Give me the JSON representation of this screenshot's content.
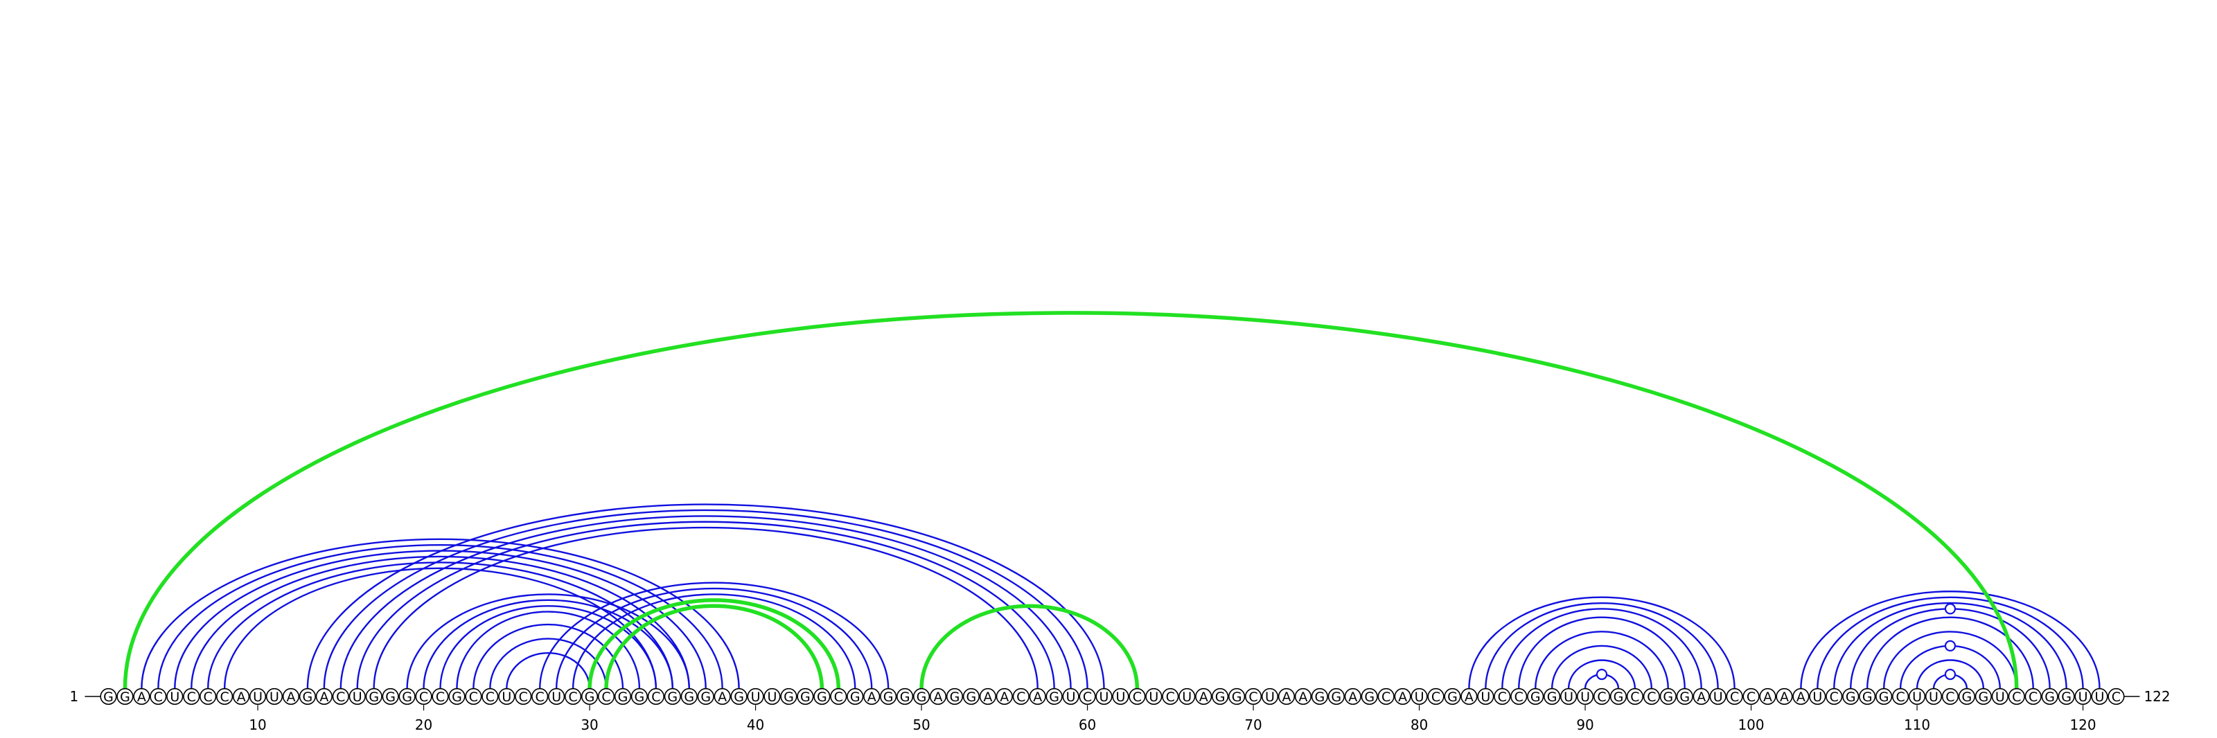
{
  "diagram": {
    "type": "rna-arc-diagram",
    "sequence": "GGACUCCCAUUAGACUGGGCCGCCUCCUCGCGGCGGGAGUUGGGCGAGGGAGGAACAGUCUUCUCUAGGCUAAGGAGCAUCGAUCCGGUUCGCCGGAUCCAAAUCGGGCUUCGGUCCGGUUC",
    "start_label": "1",
    "end_label": "122",
    "ticks": [
      "10",
      "20",
      "30",
      "40",
      "50",
      "60",
      "70",
      "80",
      "90",
      "100",
      "110",
      "120"
    ],
    "colors": {
      "blue": "#1010e0",
      "green": "#22e022"
    },
    "blue_pairs": [
      [
        3,
        39
      ],
      [
        4,
        38
      ],
      [
        5,
        37
      ],
      [
        6,
        36
      ],
      [
        7,
        35
      ],
      [
        8,
        34
      ],
      [
        13,
        61
      ],
      [
        14,
        60
      ],
      [
        15,
        59
      ],
      [
        16,
        58
      ],
      [
        17,
        57
      ],
      [
        19,
        36
      ],
      [
        20,
        35
      ],
      [
        21,
        34
      ],
      [
        22,
        33
      ],
      [
        23,
        32
      ],
      [
        24,
        31
      ],
      [
        25,
        30
      ],
      [
        27,
        48
      ],
      [
        28,
        47
      ],
      [
        29,
        46
      ],
      [
        30,
        45
      ],
      [
        31,
        44
      ],
      [
        83,
        99
      ],
      [
        84,
        98
      ],
      [
        85,
        97
      ],
      [
        86,
        96
      ],
      [
        87,
        95
      ],
      [
        88,
        94
      ],
      [
        89,
        93
      ],
      [
        90,
        92
      ],
      [
        103,
        121
      ],
      [
        104,
        120
      ],
      [
        105,
        119
      ],
      [
        106,
        118
      ],
      [
        107,
        117
      ],
      [
        108,
        116
      ],
      [
        109,
        115
      ],
      [
        110,
        114
      ],
      [
        111,
        113
      ]
    ],
    "green_pairs": [
      [
        2,
        116
      ],
      [
        30,
        45
      ],
      [
        31,
        44
      ],
      [
        50,
        63
      ]
    ],
    "marked_nucleotides": [
      {
        "index": 91,
        "color": "blue"
      },
      {
        "index": 112,
        "color": "blue"
      },
      {
        "index": 112,
        "color": "blue"
      },
      {
        "index": 112,
        "color": "blue"
      }
    ]
  }
}
